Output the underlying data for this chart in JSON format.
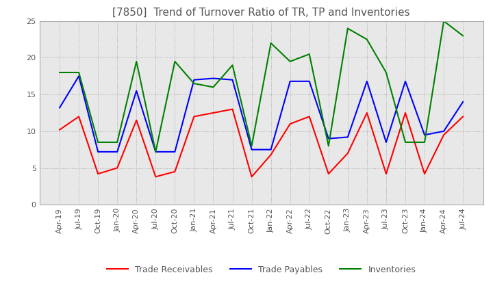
{
  "title": "[7850]  Trend of Turnover Ratio of TR, TP and Inventories",
  "ylim": [
    0,
    25.0
  ],
  "yticks": [
    0.0,
    5.0,
    10.0,
    15.0,
    20.0,
    25.0
  ],
  "x_labels": [
    "Apr-19",
    "Jul-19",
    "Oct-19",
    "Jan-20",
    "Apr-20",
    "Jul-20",
    "Oct-20",
    "Jan-21",
    "Apr-21",
    "Jul-21",
    "Oct-21",
    "Jan-22",
    "Apr-22",
    "Jul-22",
    "Oct-22",
    "Jan-23",
    "Apr-23",
    "Jul-23",
    "Oct-23",
    "Jan-24",
    "Apr-24",
    "Jul-24"
  ],
  "trade_receivables": [
    10.2,
    12.0,
    4.2,
    5.0,
    11.5,
    3.8,
    4.5,
    12.0,
    12.5,
    13.0,
    3.8,
    6.8,
    11.0,
    12.0,
    4.2,
    7.0,
    12.5,
    4.2,
    12.5,
    4.2,
    9.5,
    12.0
  ],
  "trade_payables": [
    13.2,
    17.5,
    7.2,
    7.2,
    15.5,
    7.2,
    7.2,
    17.0,
    17.2,
    17.0,
    7.5,
    7.5,
    16.8,
    16.8,
    9.0,
    9.2,
    16.8,
    8.5,
    16.8,
    9.5,
    10.0,
    14.0
  ],
  "inventories": [
    18.0,
    18.0,
    8.5,
    8.5,
    19.5,
    7.2,
    19.5,
    16.5,
    16.0,
    19.0,
    8.0,
    22.0,
    19.5,
    20.5,
    8.0,
    24.0,
    22.5,
    18.0,
    8.5,
    8.5,
    25.0,
    23.0
  ],
  "tr_color": "#ff0000",
  "tp_color": "#0000ff",
  "inv_color": "#008000",
  "legend_labels": [
    "Trade Receivables",
    "Trade Payables",
    "Inventories"
  ],
  "background_color": "#ffffff",
  "plot_bg_color": "#e8e8e8",
  "grid_color": "#aaaaaa",
  "title_color": "#555555",
  "tick_color": "#555555",
  "title_fontsize": 11,
  "tick_fontsize": 8,
  "legend_fontsize": 9,
  "line_width": 1.5
}
